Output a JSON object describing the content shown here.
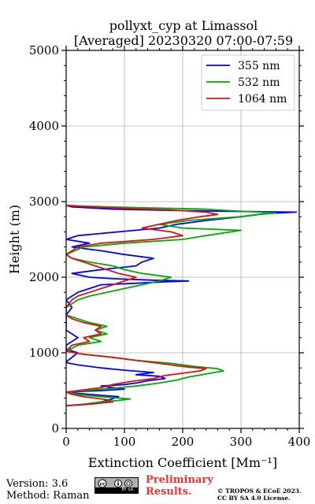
{
  "header": {
    "title_line1": "pollyxt_cyp at Limassol",
    "title_line2": "[Averaged] 20230320 07:00-07:59"
  },
  "chart_data": {
    "type": "line",
    "xlabel": "Extinction Coefficient [Mm⁻¹]",
    "ylabel": "Height (m)",
    "xlim": [
      0,
      400
    ],
    "ylim": [
      0,
      5000
    ],
    "xticks": [
      0,
      100,
      200,
      300,
      400
    ],
    "yticks": [
      0,
      1000,
      2000,
      3000,
      4000,
      5000
    ],
    "grid": true,
    "legend_position": "top-right",
    "series": [
      {
        "name": "355 nm",
        "color": "#0000ff",
        "points": [
          [
            0,
            300
          ],
          [
            35,
            320
          ],
          [
            60,
            350
          ],
          [
            75,
            380
          ],
          [
            90,
            420
          ],
          [
            40,
            450
          ],
          [
            10,
            470
          ],
          [
            0,
            480
          ],
          [
            60,
            500
          ],
          [
            100,
            520
          ],
          [
            80,
            540
          ],
          [
            60,
            560
          ],
          [
            100,
            580
          ],
          [
            120,
            600
          ],
          [
            140,
            630
          ],
          [
            170,
            660
          ],
          [
            160,
            690
          ],
          [
            120,
            710
          ],
          [
            150,
            740
          ],
          [
            100,
            770
          ],
          [
            60,
            800
          ],
          [
            20,
            840
          ],
          [
            0,
            870
          ],
          [
            0,
            880
          ],
          [
            20,
            1000
          ],
          [
            0,
            1050
          ],
          [
            0,
            1100
          ],
          [
            20,
            1200
          ],
          [
            0,
            1300
          ],
          [
            0,
            1400
          ],
          [
            0,
            1500
          ],
          [
            10,
            1600
          ],
          [
            0,
            1700
          ],
          [
            20,
            1800
          ],
          [
            40,
            1850
          ],
          [
            60,
            1900
          ],
          [
            120,
            1920
          ],
          [
            170,
            1940
          ],
          [
            210,
            1950
          ],
          [
            150,
            1960
          ],
          [
            80,
            1980
          ],
          [
            40,
            2000
          ],
          [
            10,
            2050
          ],
          [
            60,
            2100
          ],
          [
            120,
            2150
          ],
          [
            130,
            2200
          ],
          [
            150,
            2250
          ],
          [
            100,
            2300
          ],
          [
            60,
            2350
          ],
          [
            10,
            2400
          ],
          [
            40,
            2450
          ],
          [
            0,
            2500
          ],
          [
            20,
            2550
          ],
          [
            90,
            2600
          ],
          [
            160,
            2650
          ],
          [
            190,
            2700
          ],
          [
            240,
            2750
          ],
          [
            300,
            2800
          ],
          [
            340,
            2840
          ],
          [
            395,
            2860
          ],
          [
            300,
            2870
          ],
          [
            200,
            2880
          ],
          [
            80,
            2900
          ],
          [
            10,
            2930
          ],
          [
            0,
            2950
          ]
        ]
      },
      {
        "name": "532 nm",
        "color": "#00aa00",
        "points": [
          [
            0,
            300
          ],
          [
            30,
            320
          ],
          [
            60,
            350
          ],
          [
            90,
            370
          ],
          [
            110,
            390
          ],
          [
            60,
            420
          ],
          [
            20,
            450
          ],
          [
            0,
            480
          ],
          [
            30,
            500
          ],
          [
            80,
            530
          ],
          [
            120,
            560
          ],
          [
            160,
            600
          ],
          [
            190,
            640
          ],
          [
            210,
            680
          ],
          [
            240,
            720
          ],
          [
            270,
            760
          ],
          [
            260,
            790
          ],
          [
            220,
            820
          ],
          [
            180,
            860
          ],
          [
            120,
            900
          ],
          [
            80,
            940
          ],
          [
            30,
            980
          ],
          [
            0,
            1020
          ],
          [
            20,
            1100
          ],
          [
            60,
            1150
          ],
          [
            40,
            1200
          ],
          [
            70,
            1250
          ],
          [
            50,
            1300
          ],
          [
            70,
            1350
          ],
          [
            40,
            1400
          ],
          [
            20,
            1450
          ],
          [
            0,
            1500
          ],
          [
            0,
            1600
          ],
          [
            20,
            1700
          ],
          [
            40,
            1750
          ],
          [
            70,
            1800
          ],
          [
            100,
            1850
          ],
          [
            130,
            1900
          ],
          [
            160,
            1950
          ],
          [
            180,
            2000
          ],
          [
            130,
            2050
          ],
          [
            100,
            2100
          ],
          [
            80,
            2150
          ],
          [
            40,
            2200
          ],
          [
            10,
            2250
          ],
          [
            0,
            2300
          ],
          [
            30,
            2400
          ],
          [
            100,
            2450
          ],
          [
            200,
            2500
          ],
          [
            240,
            2550
          ],
          [
            300,
            2620
          ],
          [
            200,
            2650
          ],
          [
            160,
            2700
          ],
          [
            210,
            2750
          ],
          [
            300,
            2800
          ],
          [
            330,
            2830
          ],
          [
            360,
            2850
          ],
          [
            280,
            2880
          ],
          [
            240,
            2900
          ],
          [
            120,
            2920
          ],
          [
            30,
            2940
          ],
          [
            0,
            2950
          ]
        ]
      },
      {
        "name": "1064 nm",
        "color": "#dd1111",
        "points": [
          [
            0,
            300
          ],
          [
            40,
            320
          ],
          [
            80,
            350
          ],
          [
            70,
            380
          ],
          [
            30,
            420
          ],
          [
            10,
            450
          ],
          [
            0,
            480
          ],
          [
            20,
            500
          ],
          [
            60,
            540
          ],
          [
            80,
            580
          ],
          [
            110,
            620
          ],
          [
            150,
            660
          ],
          [
            170,
            700
          ],
          [
            200,
            730
          ],
          [
            230,
            760
          ],
          [
            240,
            790
          ],
          [
            200,
            820
          ],
          [
            160,
            860
          ],
          [
            120,
            900
          ],
          [
            80,
            940
          ],
          [
            30,
            980
          ],
          [
            0,
            1020
          ],
          [
            10,
            1100
          ],
          [
            40,
            1150
          ],
          [
            30,
            1200
          ],
          [
            60,
            1250
          ],
          [
            50,
            1300
          ],
          [
            60,
            1350
          ],
          [
            30,
            1400
          ],
          [
            10,
            1450
          ],
          [
            0,
            1500
          ],
          [
            0,
            1600
          ],
          [
            10,
            1700
          ],
          [
            20,
            1750
          ],
          [
            40,
            1800
          ],
          [
            60,
            1850
          ],
          [
            80,
            1900
          ],
          [
            100,
            1950
          ],
          [
            120,
            2000
          ],
          [
            90,
            2050
          ],
          [
            70,
            2100
          ],
          [
            50,
            2150
          ],
          [
            30,
            2200
          ],
          [
            10,
            2250
          ],
          [
            0,
            2300
          ],
          [
            20,
            2400
          ],
          [
            60,
            2450
          ],
          [
            150,
            2500
          ],
          [
            200,
            2550
          ],
          [
            180,
            2600
          ],
          [
            130,
            2650
          ],
          [
            160,
            2700
          ],
          [
            190,
            2750
          ],
          [
            230,
            2800
          ],
          [
            260,
            2830
          ],
          [
            240,
            2860
          ],
          [
            180,
            2890
          ],
          [
            100,
            2910
          ],
          [
            20,
            2940
          ],
          [
            0,
            2950
          ]
        ]
      }
    ]
  },
  "footer": {
    "version": "Version: 3.6",
    "method": "Method: Raman",
    "preliminary_line1": "Preliminary",
    "preliminary_line2": "Results.",
    "license_line1": "© TROPOS & ECoE 2023.",
    "license_line2": "CC BY SA 4.0 License.",
    "cc_badge_text": "BY  SA"
  }
}
